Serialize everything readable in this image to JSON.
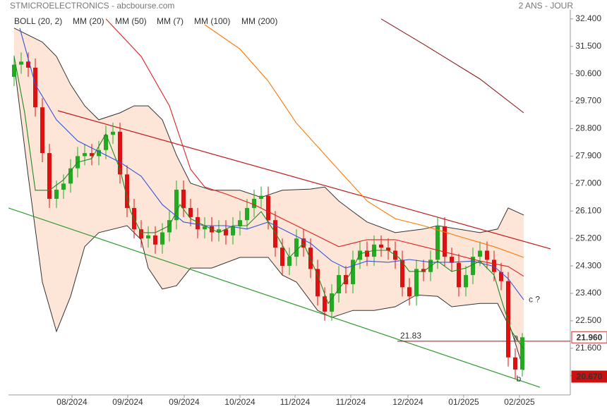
{
  "chart_data": {
    "type": "candlestick",
    "title": "STMICROELECTRONICS - abcbourse.com",
    "subtitle": "2 ANS - JOUR",
    "xlim": [
      -0.8,
      78.8
    ],
    "xticks": [
      {
        "value": 8.2,
        "label": "08/2024"
      },
      {
        "value": 16.1,
        "label": "09/2024"
      },
      {
        "value": 24.1,
        "label": "09/2024"
      },
      {
        "value": 32,
        "label": "10/2024"
      },
      {
        "value": 39.8,
        "label": "11/2024"
      },
      {
        "value": 47.7,
        "label": "11/2024"
      },
      {
        "value": 55.8,
        "label": "12/2024"
      },
      {
        "value": 63.7,
        "label": "01/2025"
      },
      {
        "value": 71.6,
        "label": "02/2025"
      }
    ],
    "ylim": [
      20.07,
      33.02
    ],
    "yticks": [
      {
        "value": 32.4,
        "label": "32.400"
      },
      {
        "value": 31.5,
        "label": "31.500"
      },
      {
        "value": 30.6,
        "label": "30.600"
      },
      {
        "value": 29.7,
        "label": "29.700"
      },
      {
        "value": 28.8,
        "label": "28.800"
      },
      {
        "value": 27.9,
        "label": "27.900"
      },
      {
        "value": 27.0,
        "label": "27.000"
      },
      {
        "value": 26.1,
        "label": "26.100"
      },
      {
        "value": 25.2,
        "label": "25.200"
      },
      {
        "value": 24.3,
        "label": "24.300"
      },
      {
        "value": 23.4,
        "label": "23.400"
      },
      {
        "value": 22.5,
        "label": "22.500"
      },
      {
        "value": 21.6,
        "label": "21.600"
      },
      {
        "value": 20.7,
        "label": "20.700"
      }
    ],
    "up_color": "#22aa22",
    "down_color": "#dd1111",
    "x": [
      0,
      1,
      2,
      3,
      4,
      5,
      6,
      7,
      8,
      9,
      10,
      11,
      12,
      13,
      14,
      15,
      16,
      17,
      18,
      19,
      20,
      21,
      22,
      23,
      24,
      25,
      26,
      27,
      28,
      29,
      30,
      31,
      32,
      33,
      34,
      35,
      36,
      37,
      38,
      39,
      40,
      41,
      42,
      43,
      44,
      45,
      46,
      47,
      48,
      49,
      50,
      51,
      52,
      53,
      54,
      55,
      56,
      57,
      58,
      59,
      60,
      61,
      62,
      63,
      64,
      65,
      66,
      67,
      68,
      69,
      70,
      71,
      72
    ],
    "open": [
      30.5,
      30.9,
      31.0,
      30.8,
      29.5,
      28.0,
      26.5,
      26.8,
      27.0,
      27.5,
      27.9,
      28.0,
      27.9,
      28.1,
      28.6,
      28.7,
      27.3,
      26.2,
      25.5,
      25.2,
      25.3,
      25.0,
      25.4,
      25.8,
      26.8,
      26.2,
      25.9,
      25.5,
      25.6,
      25.4,
      25.5,
      25.3,
      25.6,
      25.8,
      26.2,
      26.5,
      26.6,
      25.8,
      24.9,
      24.3,
      24.6,
      25.2,
      24.9,
      24.2,
      23.3,
      22.8,
      23.4,
      24.0,
      23.7,
      24.5,
      24.8,
      24.6,
      25.0,
      24.9,
      24.8,
      24.5,
      23.6,
      23.3,
      24.2,
      24.1,
      24.5,
      25.6,
      24.6,
      24.4,
      23.6,
      24.0,
      24.6,
      24.8,
      24.5,
      24.1,
      23.8,
      21.3,
      20.9
    ],
    "high": [
      31.2,
      31.3,
      31.3,
      31.1,
      29.8,
      28.3,
      27.1,
      27.3,
      27.8,
      28.2,
      28.3,
      28.3,
      28.4,
      28.9,
      29.0,
      29.0,
      27.6,
      26.5,
      25.8,
      25.6,
      25.6,
      25.7,
      26.1,
      27.1,
      27.1,
      26.5,
      26.2,
      25.9,
      25.9,
      25.8,
      25.8,
      25.9,
      26.1,
      26.5,
      26.8,
      26.9,
      26.9,
      26.1,
      25.2,
      24.9,
      25.5,
      25.5,
      25.2,
      24.5,
      23.6,
      23.7,
      24.3,
      24.3,
      24.8,
      25.1,
      25.1,
      25.3,
      25.3,
      25.2,
      25.1,
      24.8,
      23.9,
      24.5,
      24.5,
      24.8,
      25.9,
      25.9,
      24.9,
      24.7,
      24.3,
      24.9,
      25.1,
      25.1,
      24.8,
      24.4,
      24.1,
      21.6,
      22.1
    ],
    "low": [
      30.2,
      30.6,
      30.5,
      29.2,
      27.7,
      26.2,
      26.2,
      26.5,
      26.7,
      27.2,
      27.6,
      27.6,
      27.6,
      27.8,
      28.3,
      27.0,
      25.9,
      25.2,
      24.9,
      24.9,
      24.7,
      24.7,
      25.1,
      25.5,
      25.9,
      25.6,
      25.2,
      25.2,
      25.1,
      25.1,
      25.0,
      25.0,
      25.3,
      25.5,
      25.9,
      26.2,
      25.5,
      24.6,
      24.0,
      24.0,
      24.3,
      24.6,
      23.9,
      23.0,
      22.5,
      22.5,
      23.1,
      23.4,
      23.4,
      24.2,
      24.3,
      24.3,
      24.6,
      24.5,
      24.2,
      23.3,
      23.0,
      23.0,
      23.8,
      23.8,
      24.2,
      24.3,
      24.1,
      23.3,
      23.3,
      23.7,
      24.3,
      24.2,
      23.8,
      23.5,
      21.0,
      20.6,
      20.67
    ],
    "close": [
      30.9,
      31.0,
      30.8,
      29.5,
      28.0,
      26.5,
      26.8,
      27.0,
      27.5,
      27.9,
      28.0,
      27.9,
      28.1,
      28.6,
      28.7,
      27.3,
      26.2,
      25.5,
      25.2,
      25.3,
      25.0,
      25.4,
      25.8,
      26.8,
      26.2,
      25.9,
      25.5,
      25.6,
      25.4,
      25.5,
      25.3,
      25.6,
      25.8,
      26.2,
      26.5,
      26.6,
      25.8,
      24.9,
      24.3,
      24.6,
      25.2,
      24.9,
      24.2,
      23.3,
      22.8,
      23.4,
      24.0,
      23.7,
      24.5,
      24.8,
      24.6,
      25.0,
      24.9,
      24.8,
      24.5,
      23.6,
      23.3,
      24.2,
      24.1,
      24.5,
      25.6,
      24.6,
      24.4,
      23.6,
      24.0,
      24.6,
      24.8,
      24.5,
      24.1,
      23.8,
      21.3,
      20.9,
      21.96
    ],
    "bollinger": {
      "name": "BOLL (20, 2)",
      "color": "#333333",
      "fill": "#fde6d8",
      "upper": {
        "x": [
          0,
          4,
          6,
          8,
          10,
          12,
          15,
          17,
          19,
          21,
          23,
          25,
          28,
          32,
          35,
          38,
          42,
          44,
          46,
          48,
          50,
          54,
          58,
          60,
          66,
          68.5,
          70,
          72.2
        ],
        "values": [
          32.1,
          31.64,
          31.17,
          30.25,
          29.55,
          29.09,
          29.32,
          29.55,
          29.55,
          29.09,
          27.93,
          27.01,
          26.78,
          26.78,
          26.55,
          26.78,
          26.82,
          26.89,
          26.43,
          26.08,
          25.74,
          25.39,
          25.51,
          25.62,
          25.39,
          25.51,
          26.2,
          25.97
        ]
      },
      "lower": {
        "x": [
          0,
          2,
          4,
          6,
          8,
          10,
          12,
          16,
          18,
          19,
          21,
          23,
          25,
          28,
          32,
          36,
          38,
          40,
          43,
          45,
          48,
          51,
          54,
          57,
          60,
          62,
          66,
          68.5,
          70.5,
          72.2
        ],
        "values": [
          30.94,
          27.24,
          23.77,
          22.15,
          23.3,
          24.93,
          25.39,
          25.62,
          25.16,
          24.23,
          23.54,
          23.65,
          24.23,
          24.23,
          24.58,
          24.58,
          24.0,
          23.77,
          22.84,
          22.61,
          22.84,
          22.84,
          22.96,
          23.35,
          23.3,
          22.96,
          23.07,
          23.07,
          22.15,
          20.88
        ]
      }
    },
    "series": [
      {
        "name": "MM (20)",
        "color": "#3355dd",
        "x": [
          0.8,
          3,
          6,
          9,
          12,
          15,
          18,
          21,
          24,
          27,
          30,
          33,
          36,
          39,
          42,
          45,
          47,
          50,
          53,
          56,
          59,
          62,
          65,
          68,
          70,
          72.2
        ],
        "values": [
          32.1,
          30.25,
          29.09,
          28.4,
          28.05,
          27.7,
          27.24,
          26.31,
          25.74,
          25.62,
          25.62,
          25.51,
          25.74,
          25.39,
          25.04,
          24.46,
          24.23,
          24.46,
          24.42,
          24.51,
          24.42,
          24.42,
          24.46,
          24.28,
          23.88,
          23.19
        ]
      },
      {
        "name": "MM (50)",
        "color": "#e02020",
        "x": [
          13,
          18,
          22,
          25,
          27,
          30,
          34,
          38,
          42,
          46,
          50,
          54,
          58,
          62,
          66,
          70,
          72.2
        ],
        "values": [
          32.4,
          31.17,
          29.55,
          27.47,
          26.89,
          26.66,
          26.31,
          25.85,
          25.39,
          24.93,
          25.16,
          25.16,
          24.93,
          24.7,
          24.46,
          24.28,
          23.96
        ]
      },
      {
        "name": "MM (7)",
        "color": "#228822",
        "x": [
          0,
          1.5,
          3,
          5,
          7,
          9,
          11,
          13,
          15,
          16.5,
          18,
          20,
          22,
          23.5,
          25,
          27,
          29,
          31,
          33,
          35,
          37,
          39,
          41,
          43,
          44.5,
          46,
          47.5,
          49,
          51,
          53,
          54.5,
          56,
          58,
          60,
          62,
          64,
          66,
          68,
          69.2,
          70.5,
          72.2
        ],
        "values": [
          31.17,
          29.32,
          26.78,
          26.78,
          27.12,
          27.7,
          27.82,
          28.63,
          27.47,
          26.08,
          25.39,
          25.39,
          25.62,
          26.31,
          25.85,
          25.62,
          25.39,
          25.62,
          25.62,
          26.08,
          25.39,
          24.58,
          25.04,
          24.0,
          23.07,
          23.54,
          24.0,
          24.7,
          24.81,
          24.81,
          24.58,
          24.12,
          24.12,
          24.46,
          24.12,
          24.23,
          24.46,
          24.0,
          23.07,
          22.15,
          21.57
        ]
      },
      {
        "name": "MM (100)",
        "color": "#ff7700",
        "x": [
          27,
          32,
          36,
          40,
          45,
          50,
          54,
          58,
          63,
          68,
          72.2
        ],
        "values": [
          32.21,
          31.41,
          30.36,
          28.98,
          27.7,
          26.43,
          25.85,
          25.62,
          25.27,
          24.93,
          24.58
        ]
      },
      {
        "name": "MM (200)",
        "color": "#8b1a1a",
        "x": [
          52,
          58,
          66,
          72.2
        ],
        "values": [
          32.4,
          31.57,
          30.43,
          29.32
        ]
      }
    ],
    "trendlines": [
      {
        "color": "#c01818",
        "x": [
          6.2,
          76
        ],
        "values": [
          29.39,
          24.86
        ]
      },
      {
        "color": "#2a9a2a",
        "x": [
          -0.8,
          74.5
        ],
        "values": [
          26.2,
          20.32
        ]
      }
    ],
    "level": {
      "value": 21.83,
      "color": "#a01010",
      "x": [
        54.3,
        78.8
      ]
    },
    "last_price": {
      "value": 21.96,
      "label": "21.960"
    },
    "low_price": {
      "value": 20.67,
      "label": "20.670"
    },
    "annotations": [
      {
        "text": "a",
        "x": 71.1,
        "y": 21.94
      },
      {
        "text": "b",
        "x": 71.5,
        "y": 20.58
      },
      {
        "text": "c ?",
        "x": 73.7,
        "y": 23.19
      }
    ]
  }
}
